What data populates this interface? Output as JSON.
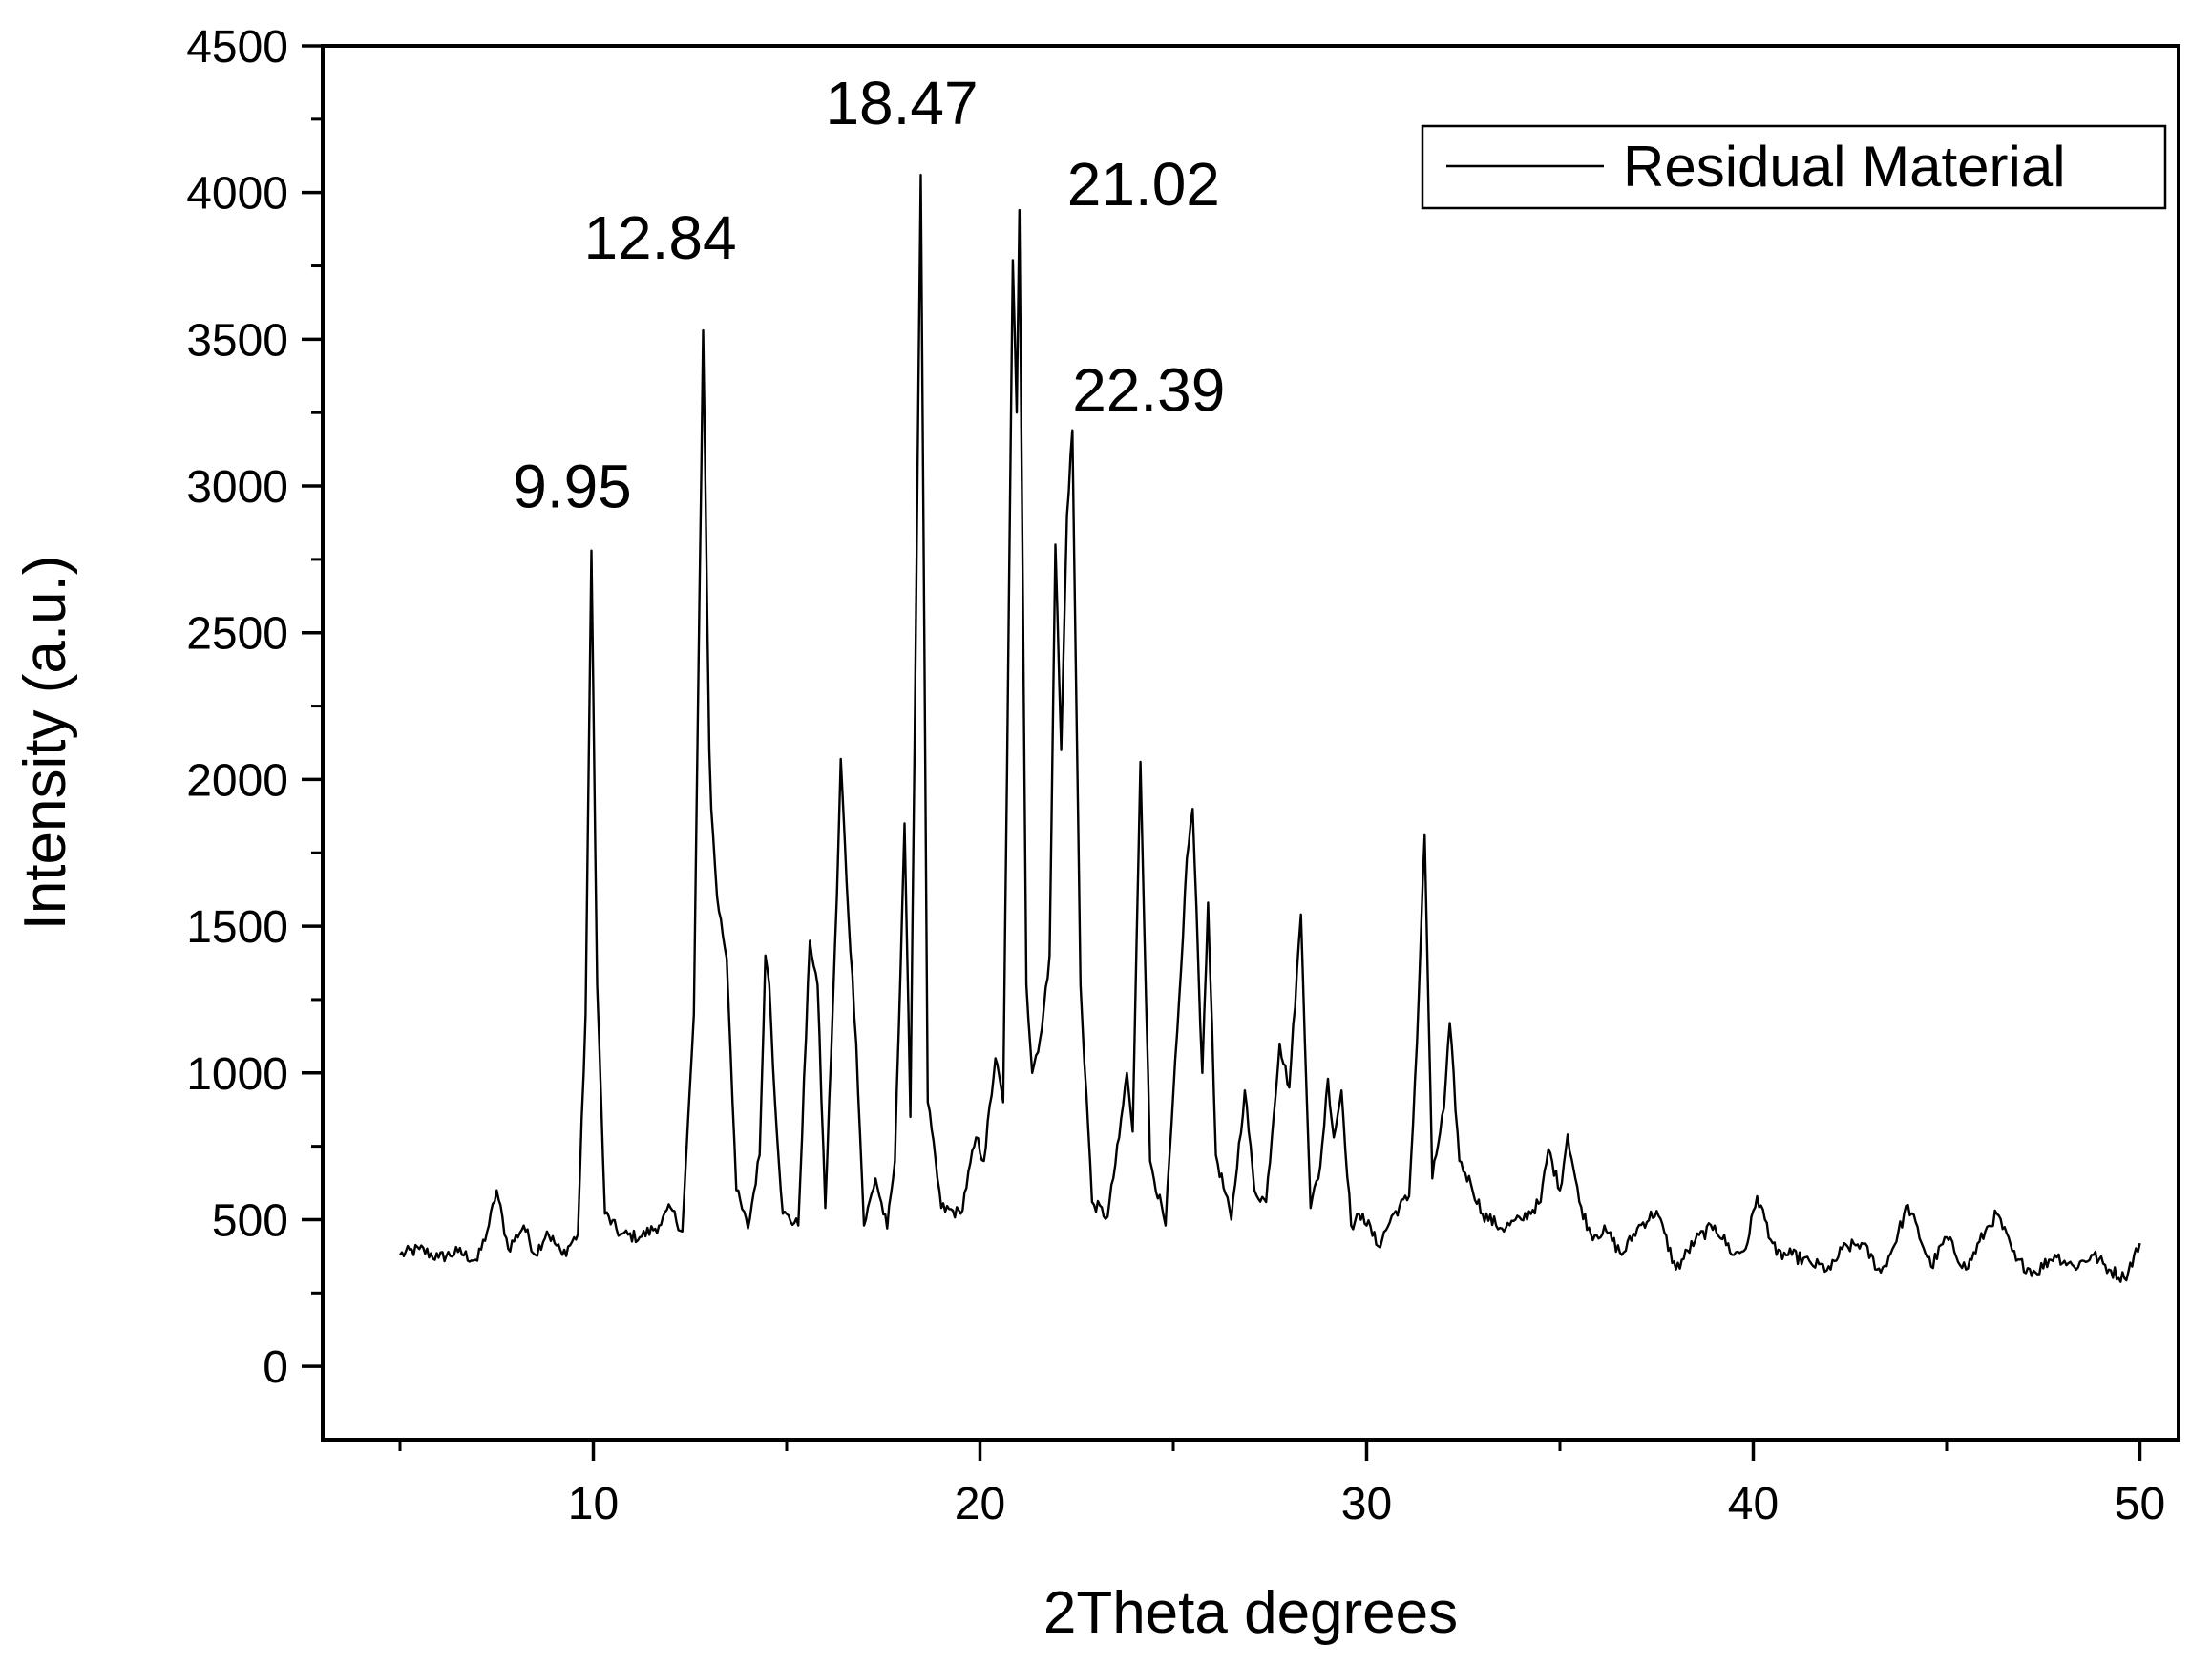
{
  "chart_data": {
    "type": "line",
    "xlabel": "2Theta degrees",
    "ylabel": "Intensity (a.u.)",
    "xlim": [
      3,
      51
    ],
    "ylim": [
      -250,
      4500
    ],
    "x_ticks": [
      10,
      20,
      30,
      40,
      50
    ],
    "y_ticks": [
      0,
      500,
      1000,
      1500,
      2000,
      2500,
      3000,
      3500,
      4000,
      4500
    ],
    "x_tick_labels": [
      "10",
      "20",
      "30",
      "40",
      "50"
    ],
    "y_tick_labels": [
      "0",
      "500",
      "1000",
      "1500",
      "2000",
      "2500",
      "3000",
      "3500",
      "4000",
      "4500"
    ],
    "grid": false,
    "legend_position": "top-right",
    "line_color": "#000000",
    "series": [
      {
        "name": "Residual Material",
        "x": [
          5.0,
          5.5,
          6.0,
          6.5,
          7.0,
          7.3,
          7.5,
          7.8,
          8.2,
          8.5,
          8.8,
          9.2,
          9.6,
          9.8,
          9.95,
          10.1,
          10.3,
          10.7,
          11.2,
          11.7,
          12.0,
          12.3,
          12.6,
          12.84,
          13.0,
          13.05,
          13.2,
          13.45,
          13.7,
          14.0,
          14.3,
          14.45,
          14.55,
          14.7,
          14.9,
          15.3,
          15.6,
          15.8,
          16.0,
          16.3,
          16.4,
          16.55,
          16.8,
          17.0,
          17.3,
          17.6,
          17.8,
          18.05,
          18.2,
          18.47,
          18.65,
          19.0,
          19.5,
          19.9,
          20.1,
          20.4,
          20.6,
          20.85,
          20.95,
          21.02,
          21.2,
          21.35,
          21.6,
          21.8,
          21.95,
          22.1,
          22.25,
          22.39,
          22.6,
          22.9,
          23.3,
          23.6,
          23.8,
          23.95,
          24.15,
          24.4,
          24.8,
          25.2,
          25.35,
          25.5,
          25.75,
          25.9,
          26.1,
          26.5,
          26.85,
          27.1,
          27.4,
          27.75,
          28.0,
          28.3,
          28.55,
          28.8,
          29.0,
          29.15,
          29.35,
          29.6,
          29.9,
          30.3,
          30.7,
          31.1,
          31.3,
          31.5,
          31.7,
          32.0,
          32.15,
          32.4,
          32.7,
          33.0,
          33.5,
          34.0,
          34.5,
          34.7,
          35.0,
          35.2,
          35.5,
          35.8,
          36.2,
          36.6,
          37.0,
          37.5,
          38.0,
          38.5,
          39.0,
          39.5,
          39.8,
          40.1,
          40.6,
          41.0,
          41.5,
          42.0,
          42.3,
          42.8,
          43.3,
          43.6,
          44.0,
          44.6,
          45.0,
          45.5,
          46.0,
          46.3,
          46.8,
          47.3,
          47.8,
          48.3,
          48.8,
          49.2,
          49.6,
          50.0
        ],
        "y": [
          380,
          400,
          370,
          390,
          360,
          480,
          600,
          400,
          480,
          380,
          460,
          380,
          450,
          1200,
          2780,
          1300,
          520,
          450,
          440,
          480,
          540,
          460,
          1200,
          3530,
          2100,
          1900,
          1600,
          1390,
          600,
          470,
          720,
          1400,
          1300,
          900,
          520,
          480,
          1450,
          1300,
          540,
          1600,
          2070,
          1650,
          1100,
          480,
          640,
          470,
          700,
          1850,
          850,
          4060,
          900,
          540,
          520,
          780,
          700,
          1050,
          900,
          3770,
          3250,
          3940,
          1300,
          1000,
          1150,
          1400,
          2800,
          2100,
          2900,
          3190,
          1300,
          560,
          510,
          780,
          1000,
          800,
          2060,
          700,
          480,
          1350,
          1730,
          1900,
          1000,
          1580,
          720,
          500,
          940,
          600,
          560,
          1100,
          950,
          1540,
          540,
          680,
          980,
          780,
          940,
          480,
          520,
          410,
          520,
          580,
          1100,
          1810,
          640,
          880,
          1170,
          700,
          620,
          520,
          470,
          500,
          560,
          740,
          600,
          790,
          560,
          450,
          460,
          380,
          470,
          530,
          330,
          430,
          480,
          380,
          400,
          580,
          380,
          380,
          350,
          330,
          400,
          420,
          320,
          400,
          550,
          340,
          440,
          330,
          460,
          520,
          360,
          320,
          380,
          340,
          380,
          330,
          300,
          420
        ]
      }
    ],
    "annotations": [
      {
        "text": "9.95",
        "x": 9.95,
        "y": 2780
      },
      {
        "text": "12.84",
        "x": 12.84,
        "y": 3530
      },
      {
        "text": "18.47",
        "x": 18.47,
        "y": 4060
      },
      {
        "text": "21.02",
        "x": 21.02,
        "y": 3940
      },
      {
        "text": "22.39",
        "x": 22.39,
        "y": 3190
      }
    ]
  }
}
